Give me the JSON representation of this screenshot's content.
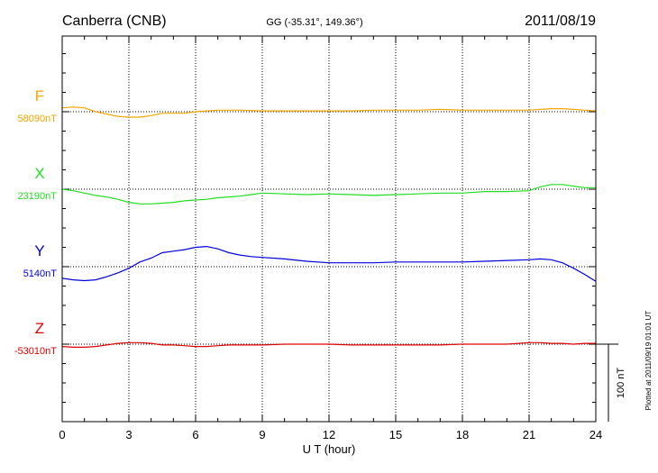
{
  "chart_data": {
    "type": "line",
    "station": "Canberra (CNB)",
    "coords": "GG (-35.31°, 149.36°)",
    "date": "2011/08/19",
    "xlabel": "U T (hour)",
    "xlim": [
      0,
      24
    ],
    "xticks": [
      "0",
      "3",
      "6",
      "9",
      "12",
      "15",
      "18",
      "21",
      "24"
    ],
    "grid": true,
    "y_scale_bar_label": "100 nT",
    "y_scale_bar_nT": 100,
    "plotted_note": "Plotted at 2011/09/19 01:01 UT",
    "series": [
      {
        "name": "F",
        "baseline_label": "58090nT",
        "color": "#f2a600",
        "offset_nT": 300,
        "points": [
          [
            0,
            5
          ],
          [
            0.5,
            6
          ],
          [
            1,
            5
          ],
          [
            1.5,
            0
          ],
          [
            2,
            -3
          ],
          [
            2.5,
            -6
          ],
          [
            3,
            -7
          ],
          [
            3.5,
            -7
          ],
          [
            4,
            -5
          ],
          [
            4.5,
            -2
          ],
          [
            5,
            -2
          ],
          [
            5.5,
            -2
          ],
          [
            6,
            0
          ],
          [
            6.5,
            1
          ],
          [
            7,
            2
          ],
          [
            7.5,
            2
          ],
          [
            8,
            2
          ],
          [
            9,
            1
          ],
          [
            10,
            1
          ],
          [
            11,
            1
          ],
          [
            12,
            1
          ],
          [
            13,
            1
          ],
          [
            14,
            2
          ],
          [
            15,
            2
          ],
          [
            16,
            2
          ],
          [
            17,
            3
          ],
          [
            18,
            2
          ],
          [
            19,
            2
          ],
          [
            20,
            2
          ],
          [
            21,
            2
          ],
          [
            21.5,
            3
          ],
          [
            22,
            4
          ],
          [
            22.5,
            4
          ],
          [
            23,
            3
          ],
          [
            23.5,
            2
          ],
          [
            24,
            1
          ]
        ]
      },
      {
        "name": "X",
        "baseline_label": "23190nT",
        "color": "#22dd22",
        "offset_nT": 200,
        "points": [
          [
            0,
            0
          ],
          [
            0.5,
            -2
          ],
          [
            1,
            -5
          ],
          [
            1.5,
            -8
          ],
          [
            2,
            -10
          ],
          [
            2.5,
            -13
          ],
          [
            3,
            -17
          ],
          [
            3.5,
            -19
          ],
          [
            4,
            -19
          ],
          [
            4.5,
            -18
          ],
          [
            5,
            -17
          ],
          [
            5.5,
            -15
          ],
          [
            6,
            -14
          ],
          [
            6.5,
            -13
          ],
          [
            7,
            -11
          ],
          [
            7.5,
            -10
          ],
          [
            8,
            -9
          ],
          [
            8.5,
            -7
          ],
          [
            9,
            -5
          ],
          [
            10,
            -6
          ],
          [
            11,
            -7
          ],
          [
            12,
            -6
          ],
          [
            13,
            -7
          ],
          [
            14,
            -8
          ],
          [
            15,
            -7
          ],
          [
            16,
            -6
          ],
          [
            17,
            -5
          ],
          [
            18,
            -5
          ],
          [
            19,
            -3
          ],
          [
            20,
            -3
          ],
          [
            21,
            -2
          ],
          [
            21.5,
            3
          ],
          [
            22,
            6
          ],
          [
            22.5,
            6
          ],
          [
            23,
            4
          ],
          [
            23.5,
            2
          ],
          [
            24,
            2
          ]
        ]
      },
      {
        "name": "Y",
        "baseline_label": "5140nT",
        "color": "#0000dd",
        "offset_nT": 100,
        "points": [
          [
            0,
            -15
          ],
          [
            0.5,
            -17
          ],
          [
            1,
            -18
          ],
          [
            1.5,
            -17
          ],
          [
            2,
            -13
          ],
          [
            2.5,
            -8
          ],
          [
            3,
            -2
          ],
          [
            3.5,
            6
          ],
          [
            4,
            11
          ],
          [
            4.5,
            18
          ],
          [
            5,
            20
          ],
          [
            5.5,
            22
          ],
          [
            6,
            25
          ],
          [
            6.5,
            26
          ],
          [
            7,
            23
          ],
          [
            7.5,
            18
          ],
          [
            8,
            15
          ],
          [
            8.5,
            13
          ],
          [
            9,
            12
          ],
          [
            10,
            10
          ],
          [
            11,
            7
          ],
          [
            12,
            5
          ],
          [
            13,
            5
          ],
          [
            14,
            5
          ],
          [
            15,
            6
          ],
          [
            16,
            6
          ],
          [
            17,
            6
          ],
          [
            18,
            6
          ],
          [
            19,
            7
          ],
          [
            20,
            8
          ],
          [
            21,
            9
          ],
          [
            21.5,
            10
          ],
          [
            22,
            9
          ],
          [
            22.5,
            5
          ],
          [
            23,
            -2
          ],
          [
            23.5,
            -10
          ],
          [
            24,
            -19
          ]
        ]
      },
      {
        "name": "Z",
        "baseline_label": "-53010nT",
        "color": "#dd0000",
        "offset_nT": 0,
        "points": [
          [
            0,
            -3
          ],
          [
            0.5,
            -4
          ],
          [
            1,
            -4
          ],
          [
            1.5,
            -3
          ],
          [
            2,
            -1
          ],
          [
            2.5,
            1
          ],
          [
            3,
            2
          ],
          [
            3.5,
            2
          ],
          [
            4,
            1
          ],
          [
            4.5,
            -1
          ],
          [
            5,
            -1
          ],
          [
            5.5,
            -2
          ],
          [
            6,
            -3
          ],
          [
            6.5,
            -3
          ],
          [
            7,
            -2
          ],
          [
            7.5,
            -1
          ],
          [
            8,
            -1
          ],
          [
            9,
            -1
          ],
          [
            10,
            0
          ],
          [
            11,
            0
          ],
          [
            12,
            0
          ],
          [
            13,
            -1
          ],
          [
            14,
            -1
          ],
          [
            15,
            -1
          ],
          [
            16,
            -1
          ],
          [
            17,
            -1
          ],
          [
            18,
            0
          ],
          [
            19,
            0
          ],
          [
            20,
            0
          ],
          [
            21,
            2
          ],
          [
            21.5,
            2
          ],
          [
            22,
            1
          ],
          [
            22.5,
            1
          ],
          [
            23,
            0
          ],
          [
            23.5,
            1
          ],
          [
            24,
            1
          ]
        ]
      }
    ]
  }
}
